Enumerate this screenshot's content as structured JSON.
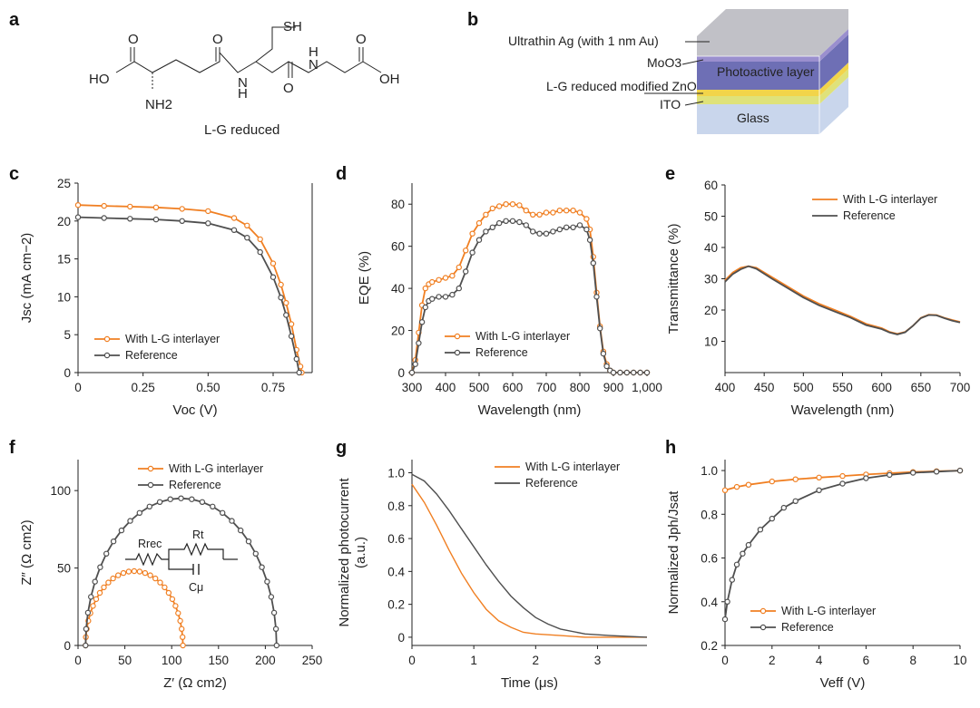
{
  "panel_labels": [
    "a",
    "b",
    "c",
    "d",
    "e",
    "f",
    "g",
    "h"
  ],
  "molecule": {
    "caption": "L-G reduced",
    "atoms": [
      "O",
      "HO",
      "NH2",
      "O",
      "H",
      "N",
      "SH",
      "N",
      "H",
      "O",
      "O",
      "OH"
    ]
  },
  "device": {
    "layers": [
      "Ultrathin Ag (with 1 nm Au)",
      "MoO3",
      "Photoactive layer",
      "L-G reduced modified ZnO",
      "ITO",
      "Glass"
    ],
    "colors": {
      "glass": "#c9d6ec",
      "ito": "#dfe27a",
      "zno": "#f2d44a",
      "active": "#6e6fb5",
      "moo3": "#9a8fce",
      "ag": "#b6b6bd"
    }
  },
  "colors": {
    "orange": "#f07f22",
    "gray": "#4f4f4f"
  },
  "chart_data": [
    {
      "panel": "c",
      "type": "line",
      "xlabel": "Voc (V)",
      "ylabel": "Jsc (mA cm−2)",
      "xlim": [
        0,
        0.9
      ],
      "ylim": [
        0,
        25
      ],
      "xticks": [
        0,
        0.25,
        0.5,
        0.75
      ],
      "xtick_labels": [
        "0",
        "0.25",
        "0.50",
        "0.75"
      ],
      "yticks": [
        0,
        5,
        10,
        15,
        20,
        25
      ],
      "legend_position": "bottom-left",
      "series": [
        {
          "name": "With L-G interlayer",
          "color": "#f07f22",
          "x": [
            0,
            0.1,
            0.2,
            0.3,
            0.4,
            0.5,
            0.6,
            0.65,
            0.7,
            0.75,
            0.78,
            0.8,
            0.82,
            0.84,
            0.855,
            0.86
          ],
          "y": [
            22.1,
            22.0,
            21.9,
            21.8,
            21.6,
            21.3,
            20.4,
            19.4,
            17.6,
            14.4,
            11.6,
            9.2,
            6.4,
            3.0,
            0.8,
            0
          ]
        },
        {
          "name": "Reference",
          "color": "#4f4f4f",
          "x": [
            0,
            0.1,
            0.2,
            0.3,
            0.4,
            0.5,
            0.6,
            0.65,
            0.7,
            0.75,
            0.78,
            0.8,
            0.82,
            0.84,
            0.85
          ],
          "y": [
            20.5,
            20.4,
            20.3,
            20.2,
            20.0,
            19.7,
            18.8,
            17.8,
            15.9,
            12.6,
            9.9,
            7.6,
            4.8,
            1.8,
            0
          ]
        }
      ]
    },
    {
      "panel": "d",
      "type": "line",
      "xlabel": "Wavelength (nm)",
      "ylabel": "EQE (%)",
      "xlim": [
        300,
        1000
      ],
      "ylim": [
        0,
        90
      ],
      "xticks": [
        300,
        400,
        500,
        600,
        700,
        800,
        900,
        1000
      ],
      "xtick_labels": [
        "300",
        "400",
        "500",
        "600",
        "700",
        "800",
        "900",
        "1,000"
      ],
      "yticks": [
        0,
        20,
        40,
        60,
        80
      ],
      "legend_position": "bottom-center",
      "series": [
        {
          "name": "With L-G interlayer",
          "color": "#f07f22",
          "x": [
            300,
            310,
            320,
            330,
            340,
            350,
            360,
            380,
            400,
            420,
            440,
            460,
            480,
            500,
            520,
            540,
            560,
            580,
            600,
            620,
            640,
            660,
            680,
            700,
            720,
            740,
            760,
            780,
            800,
            820,
            830,
            840,
            850,
            860,
            870,
            880,
            890,
            900,
            920,
            940,
            960,
            980,
            1000
          ],
          "y": [
            0,
            6,
            19,
            32,
            40,
            42,
            43,
            44,
            45,
            46,
            50,
            58,
            66,
            71,
            75,
            78,
            79,
            80,
            80,
            79.5,
            77,
            75,
            75,
            76,
            76,
            77,
            77,
            77,
            76,
            73,
            68,
            55,
            38,
            22,
            10,
            4,
            1,
            0,
            0,
            0,
            0,
            0,
            0
          ]
        },
        {
          "name": "Reference",
          "color": "#4f4f4f",
          "x": [
            300,
            310,
            320,
            330,
            340,
            350,
            360,
            380,
            400,
            420,
            440,
            460,
            480,
            500,
            520,
            540,
            560,
            580,
            600,
            620,
            640,
            660,
            680,
            700,
            720,
            740,
            760,
            780,
            800,
            820,
            830,
            840,
            850,
            860,
            870,
            880,
            890,
            900,
            920,
            940,
            960,
            980,
            1000
          ],
          "y": [
            0,
            4,
            14,
            24,
            31,
            34,
            35,
            36,
            36,
            37,
            40,
            48,
            57,
            63,
            67,
            69,
            71,
            72,
            72,
            71.5,
            70,
            67,
            66,
            66,
            67,
            68,
            69,
            69,
            70,
            68,
            63,
            52,
            36,
            21,
            9,
            3,
            1,
            0,
            0,
            0,
            0,
            0,
            0
          ]
        }
      ]
    },
    {
      "panel": "e",
      "type": "line",
      "xlabel": "Wavelength (nm)",
      "ylabel": "Transmittance (%)",
      "xlim": [
        400,
        700
      ],
      "ylim": [
        0,
        60
      ],
      "xticks": [
        400,
        450,
        500,
        550,
        600,
        650,
        700
      ],
      "yticks": [
        10,
        20,
        30,
        40,
        50,
        60
      ],
      "legend_position": "top-right",
      "series": [
        {
          "name": "With L-G interlayer",
          "color": "#f07f22",
          "x": [
            400,
            410,
            420,
            430,
            440,
            460,
            480,
            500,
            520,
            540,
            560,
            580,
            600,
            610,
            620,
            630,
            640,
            650,
            660,
            670,
            680,
            690,
            700
          ],
          "y": [
            29.5,
            32,
            33.5,
            34,
            33.5,
            30.5,
            27.5,
            24.5,
            22,
            20,
            18,
            15.6,
            14.2,
            13,
            12.4,
            13,
            15,
            17.5,
            18.5,
            18.4,
            17.5,
            16.8,
            16.2
          ]
        },
        {
          "name": "Reference",
          "color": "#4f4f4f",
          "x": [
            400,
            410,
            420,
            430,
            440,
            460,
            480,
            500,
            520,
            540,
            560,
            580,
            600,
            610,
            620,
            630,
            640,
            650,
            660,
            670,
            680,
            690,
            700
          ],
          "y": [
            29,
            31.5,
            33,
            34,
            33.2,
            30,
            27,
            24,
            21.5,
            19.5,
            17.6,
            15.2,
            13.9,
            12.8,
            12.2,
            12.9,
            15,
            17.4,
            18.4,
            18.3,
            17.4,
            16.6,
            16
          ]
        }
      ]
    },
    {
      "panel": "f",
      "type": "scatter",
      "xlabel": "Z′ (Ω cm2)",
      "ylabel": "Z″ (Ω cm2)",
      "xlim": [
        0,
        250
      ],
      "ylim": [
        0,
        120
      ],
      "xticks": [
        0,
        50,
        100,
        150,
        200,
        250
      ],
      "yticks": [
        0,
        50,
        100
      ],
      "legend_position": "top-right",
      "annotations": [
        "Rrec",
        "Rt",
        "Cμ"
      ],
      "series": [
        {
          "name": "With L-G interlayer",
          "color": "#f07f22",
          "center": 60,
          "radius": 52,
          "ymax": 48
        },
        {
          "name": "Reference",
          "color": "#4f4f4f",
          "center": 110,
          "radius": 102,
          "ymax": 95
        }
      ]
    },
    {
      "panel": "g",
      "type": "line",
      "xlabel": "Time (μs)",
      "ylabel": "Normalized photocurrent (a.u.)",
      "xlim": [
        0,
        3.8
      ],
      "ylim": [
        -0.05,
        1.08
      ],
      "xticks": [
        0,
        1,
        2,
        3
      ],
      "yticks": [
        0,
        0.2,
        0.4,
        0.6,
        0.8,
        1.0
      ],
      "ytick_labels": [
        "0",
        "0.2",
        "0.4",
        "0.6",
        "0.8",
        "1.0"
      ],
      "legend_position": "top-right",
      "series": [
        {
          "name": "With L-G interlayer",
          "color": "#f07f22",
          "x": [
            0,
            0.2,
            0.4,
            0.6,
            0.8,
            1.0,
            1.2,
            1.4,
            1.6,
            1.8,
            2.0,
            2.4,
            2.8,
            3.2,
            3.8
          ],
          "y": [
            0.93,
            0.82,
            0.68,
            0.53,
            0.39,
            0.27,
            0.17,
            0.1,
            0.06,
            0.03,
            0.02,
            0.01,
            0,
            0,
            0
          ]
        },
        {
          "name": "Reference",
          "color": "#4f4f4f",
          "x": [
            0,
            0.2,
            0.4,
            0.6,
            0.8,
            1.0,
            1.2,
            1.4,
            1.6,
            1.8,
            2.0,
            2.2,
            2.4,
            2.8,
            3.2,
            3.8
          ],
          "y": [
            0.99,
            0.95,
            0.87,
            0.77,
            0.66,
            0.55,
            0.44,
            0.34,
            0.25,
            0.18,
            0.12,
            0.08,
            0.05,
            0.02,
            0.01,
            0
          ]
        }
      ]
    },
    {
      "panel": "h",
      "type": "scatter",
      "xlabel": "Veff (V)",
      "ylabel": "Normalized Jph/Jsat",
      "xlim": [
        0,
        10
      ],
      "ylim": [
        0.2,
        1.05
      ],
      "xticks": [
        0,
        2,
        4,
        6,
        8,
        10
      ],
      "yticks": [
        0.2,
        0.4,
        0.6,
        0.8,
        1.0
      ],
      "ytick_labels": [
        "0.2",
        "0.4",
        "0.6",
        "0.8",
        "1.0"
      ],
      "legend_position": "bottom-center",
      "series": [
        {
          "name": "With L-G interlayer",
          "color": "#f07f22",
          "x": [
            0,
            0.5,
            1,
            2,
            3,
            4,
            5,
            6,
            7,
            8,
            9,
            10
          ],
          "y": [
            0.91,
            0.925,
            0.935,
            0.95,
            0.96,
            0.968,
            0.975,
            0.982,
            0.988,
            0.993,
            0.997,
            1.0
          ]
        },
        {
          "name": "Reference",
          "color": "#4f4f4f",
          "x": [
            0,
            0.1,
            0.3,
            0.5,
            0.75,
            1,
            1.5,
            2,
            2.5,
            3,
            4,
            5,
            6,
            7,
            8,
            9,
            10
          ],
          "y": [
            0.32,
            0.4,
            0.5,
            0.57,
            0.62,
            0.66,
            0.73,
            0.78,
            0.83,
            0.86,
            0.91,
            0.94,
            0.965,
            0.98,
            0.99,
            0.995,
            1.0
          ]
        }
      ]
    }
  ]
}
